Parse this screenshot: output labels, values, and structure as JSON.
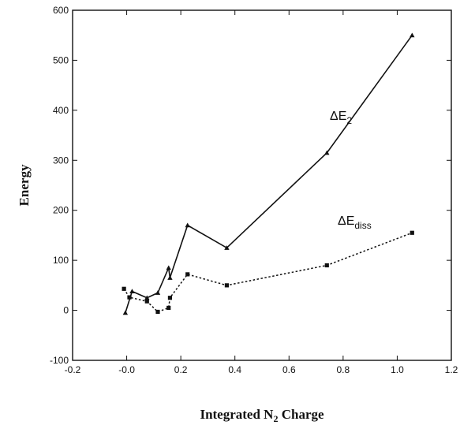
{
  "chart_data": {
    "type": "line",
    "title": "",
    "xlabel": "Integrated N",
    "xlabel_sub": "2",
    "xlabel_tail": " Charge",
    "ylabel": "Energy",
    "xlim": [
      -0.2,
      1.2
    ],
    "ylim": [
      -100,
      600
    ],
    "x_ticks": [
      "-0.2",
      "-0.0",
      "0.2",
      "0.4",
      "0.6",
      "0.8",
      "1.0",
      "1.2"
    ],
    "y_ticks": [
      "-100",
      "0",
      "100",
      "200",
      "300",
      "400",
      "500",
      "600"
    ],
    "grid": false,
    "series": [
      {
        "name_main": "ΔE",
        "name_sub": "2",
        "style": "solid",
        "marker": "triangle",
        "points": [
          [
            -0.005,
            -5
          ],
          [
            0.02,
            38
          ],
          [
            0.075,
            25
          ],
          [
            0.115,
            35
          ],
          [
            0.155,
            85
          ],
          [
            0.16,
            65
          ],
          [
            0.225,
            170
          ],
          [
            0.37,
            125
          ],
          [
            0.74,
            315
          ],
          [
            1.055,
            550
          ]
        ]
      },
      {
        "name_main": "ΔE",
        "name_sub": "diss",
        "style": "dotted",
        "marker": "square",
        "points": [
          [
            -0.01,
            43
          ],
          [
            0.01,
            26
          ],
          [
            0.075,
            18
          ],
          [
            0.115,
            -3
          ],
          [
            0.155,
            5
          ],
          [
            0.16,
            25
          ],
          [
            0.225,
            72
          ],
          [
            0.37,
            50
          ],
          [
            0.74,
            90
          ],
          [
            1.055,
            155
          ]
        ]
      }
    ]
  }
}
